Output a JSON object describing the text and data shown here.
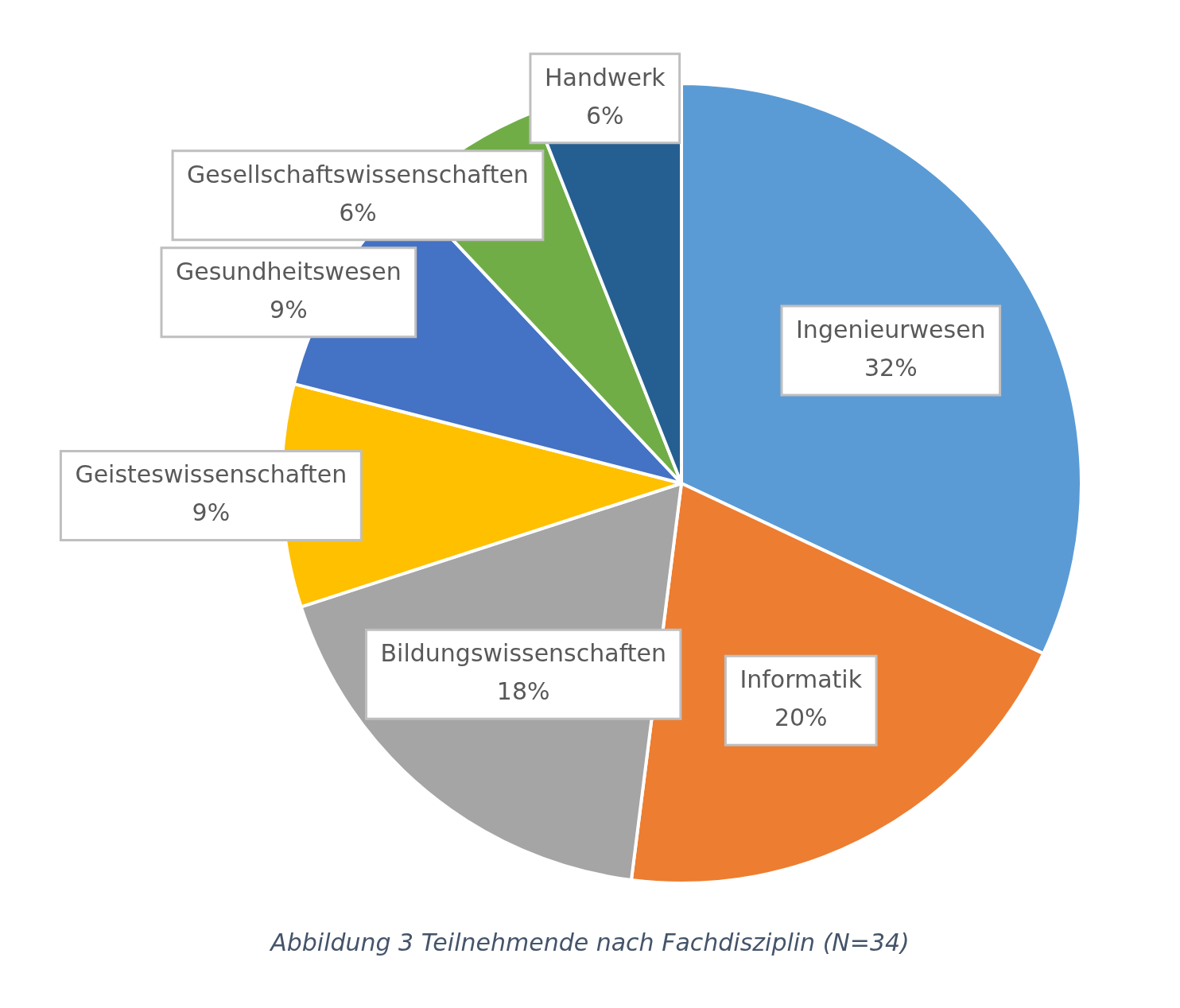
{
  "chart_data": {
    "type": "pie",
    "title": "Abbildung 3 Teilnehmende nach Fachdisziplin (N=34)",
    "categories": [
      "Ingenieurwesen",
      "Informatik",
      "Bildungswissenschaften",
      "Geisteswissenschaften",
      "Gesundheitswesen",
      "Gesellschaftswissenschaften",
      "Handwerk"
    ],
    "values": [
      32,
      20,
      18,
      9,
      9,
      6,
      6
    ],
    "value_labels": [
      "32%",
      "20%",
      "18%",
      "9%",
      "9%",
      "6%",
      "6%"
    ],
    "colors": [
      "#5b9bd5",
      "#ed7d31",
      "#a5a5a5",
      "#ffc000",
      "#4472c4",
      "#70ad47",
      "#255e91"
    ],
    "legend": false
  }
}
